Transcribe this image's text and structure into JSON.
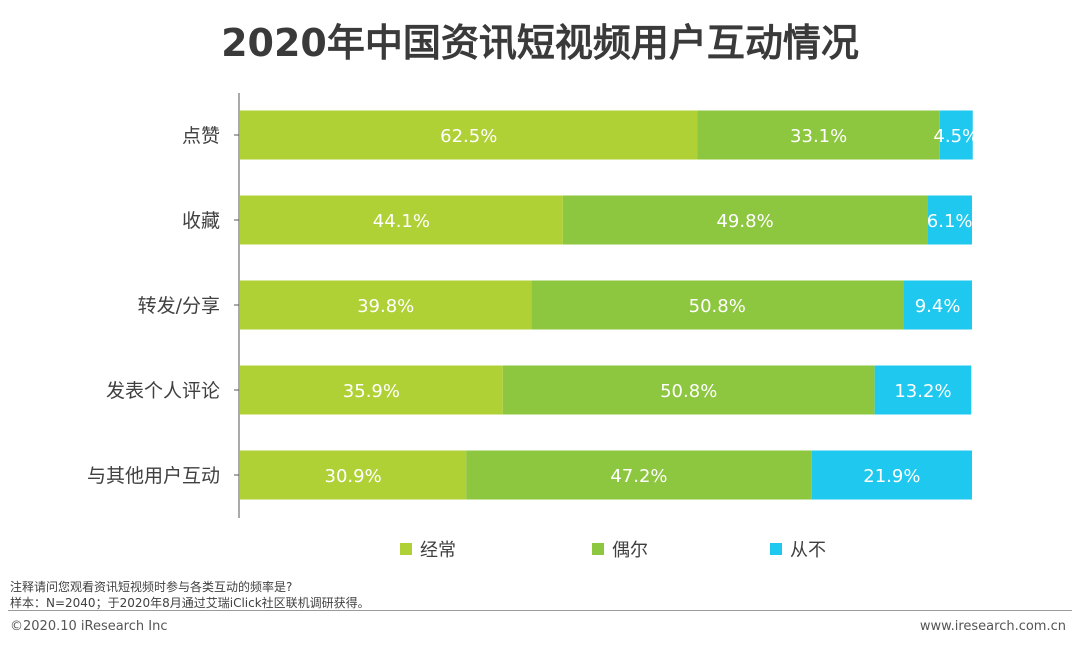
{
  "title": "2020年中国资讯短视频用户互动情况",
  "chart_data": {
    "type": "bar",
    "orientation": "horizontal",
    "stacked": true,
    "categories": [
      "点赞",
      "收藏",
      "转发/分享",
      "发表个人评论",
      "与其他用户互动"
    ],
    "series": [
      {
        "name": "经常",
        "color": "#b0d136",
        "values": [
          62.5,
          44.1,
          39.8,
          35.9,
          30.9
        ],
        "labels": [
          "62.5%",
          "44.1%",
          "39.8%",
          "35.9%",
          "30.9%"
        ]
      },
      {
        "name": "偶尔",
        "color": "#8dc63f",
        "values": [
          33.1,
          49.8,
          50.8,
          50.8,
          47.2
        ],
        "labels": [
          "33.1%",
          "49.8%",
          "50.8%",
          "50.8%",
          "47.2%"
        ]
      },
      {
        "name": "从不",
        "color": "#1ec8ee",
        "values": [
          4.5,
          6.1,
          9.4,
          13.2,
          21.9
        ],
        "labels": [
          "4.5%",
          "6.1%",
          "9.4%",
          "13.2%",
          "21.9%"
        ]
      }
    ],
    "legend_position": "bottom",
    "xlim": [
      0,
      100
    ]
  },
  "notes": {
    "line1": "注释请问您观看资讯短视频时参与各类互动的频率是?",
    "line2": "样本：N=2040；于2020年8月通过艾瑞iClick社区联机调研获得。"
  },
  "footer": {
    "copyright": "©2020.10 iResearch Inc",
    "website": "www.iresearch.com.cn"
  }
}
